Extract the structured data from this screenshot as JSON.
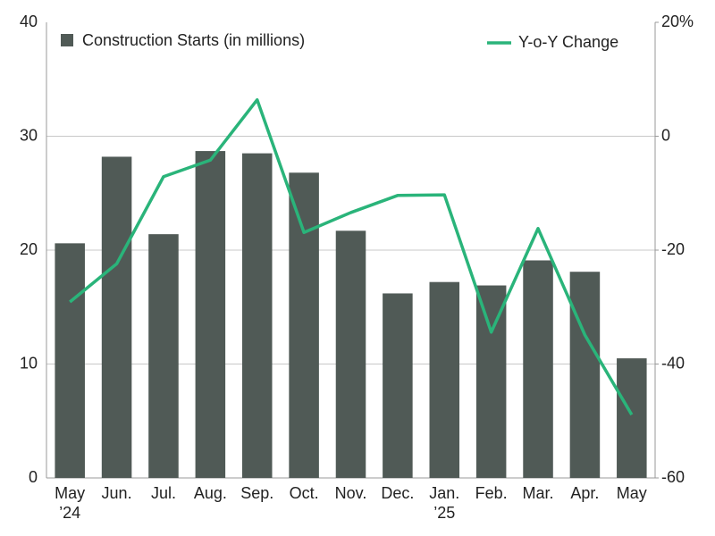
{
  "chart_data": {
    "type": "bar",
    "categories": [
      "May\n’24",
      "Jun.",
      "Jul.",
      "Aug.",
      "Sep.",
      "Oct.",
      "Nov.",
      "Dec.",
      "Jan.\n’25",
      "Feb.",
      "Mar.",
      "Apr.",
      "May"
    ],
    "series": [
      {
        "name": "Construction Starts (in millions)",
        "type": "bar",
        "color": "#505a56",
        "values": [
          20.6,
          28.2,
          21.4,
          28.7,
          28.5,
          26.8,
          21.7,
          16.2,
          17.2,
          16.9,
          19.1,
          18.1,
          10.5
        ]
      },
      {
        "name": "Y-o-Y Change",
        "type": "line",
        "axis": "y2",
        "color": "#2ab47a",
        "values": [
          -29.1,
          -22.4,
          -7.1,
          -4.2,
          6.4,
          -16.9,
          -13.4,
          -10.4,
          -10.3,
          -34.4,
          -16.2,
          -34.9,
          -48.9
        ]
      }
    ],
    "ylim": [
      0,
      40
    ],
    "yticks": [
      0,
      10,
      20,
      30,
      40
    ],
    "y2lim": [
      -60,
      20
    ],
    "y2ticks": [
      -60,
      -40,
      -20,
      0,
      {
        "value": 20,
        "label": "20%"
      }
    ],
    "grid": true
  }
}
